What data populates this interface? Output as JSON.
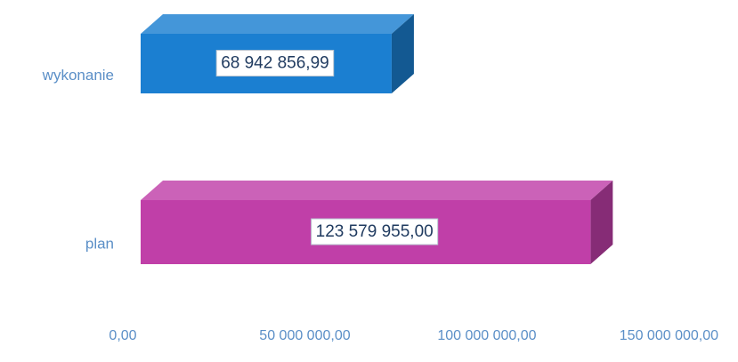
{
  "chart_data": {
    "type": "bar3d",
    "orientation": "horizontal",
    "categories": [
      "wykonanie",
      "plan"
    ],
    "values": [
      68942856.99,
      123579955.0
    ],
    "value_labels": [
      "68 942 856,99",
      "123 579 955,00"
    ],
    "colors": [
      "#1b7fd1",
      "#c03fa8"
    ],
    "xlim": [
      0,
      168000000
    ],
    "xticks": [
      {
        "value": 0,
        "label": "0,00"
      },
      {
        "value": 50000000,
        "label": "50 000 000,00"
      },
      {
        "value": 100000000,
        "label": "100 000 000,00"
      },
      {
        "value": 150000000,
        "label": "150 000 000,00"
      }
    ]
  }
}
